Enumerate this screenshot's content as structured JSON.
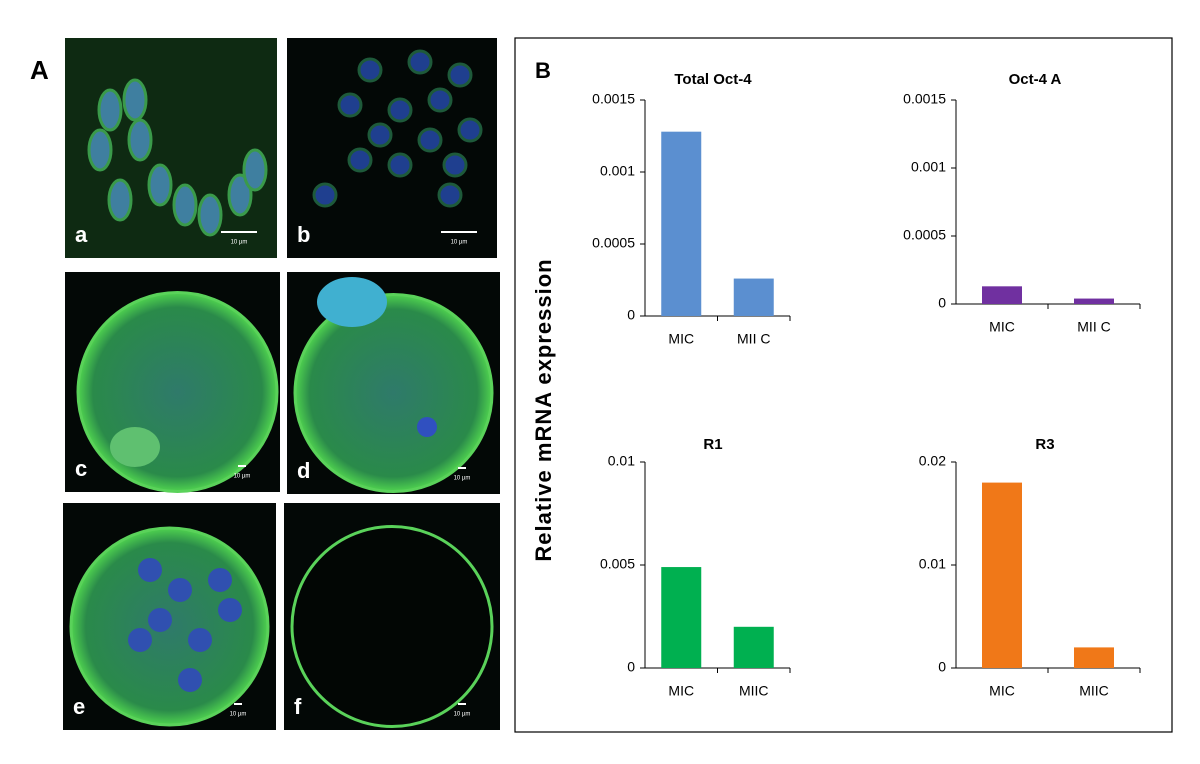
{
  "panel_labels": [
    "A",
    "B"
  ],
  "image_labels": [
    "a",
    "b",
    "c",
    "d",
    "e",
    "f"
  ],
  "scale_bar": "10 µm",
  "y_label": "Relative mRNA expression",
  "chart_data": [
    {
      "type": "bar",
      "title": "Total Oct-4",
      "categories": [
        "MIC",
        "MII C"
      ],
      "values": [
        0.00128,
        0.00026
      ],
      "color": "#5b8fd0",
      "ylim": [
        0,
        0.0015
      ],
      "yticks": [
        0,
        0.0005,
        0.001,
        0.0015
      ]
    },
    {
      "type": "bar",
      "title": "Oct-4 A",
      "categories": [
        "MIC",
        "MII C"
      ],
      "values": [
        0.00013,
        4e-05
      ],
      "color": "#7030a0",
      "ylim": [
        0,
        0.0015
      ],
      "yticks": [
        0,
        0.0005,
        0.001,
        0.0015
      ]
    },
    {
      "type": "bar",
      "title": "R1",
      "categories": [
        "MIC",
        "MIIC"
      ],
      "values": [
        0.0049,
        0.002
      ],
      "color": "#00b050",
      "ylim": [
        0,
        0.01
      ],
      "yticks": [
        0,
        0.005,
        0.01
      ]
    },
    {
      "type": "bar",
      "title": "R3",
      "categories": [
        "MIC",
        "MIIC"
      ],
      "values": [
        0.018,
        0.002
      ],
      "color": "#f07818",
      "ylim": [
        0,
        0.02
      ],
      "yticks": [
        0,
        0.01,
        0.02
      ]
    }
  ]
}
